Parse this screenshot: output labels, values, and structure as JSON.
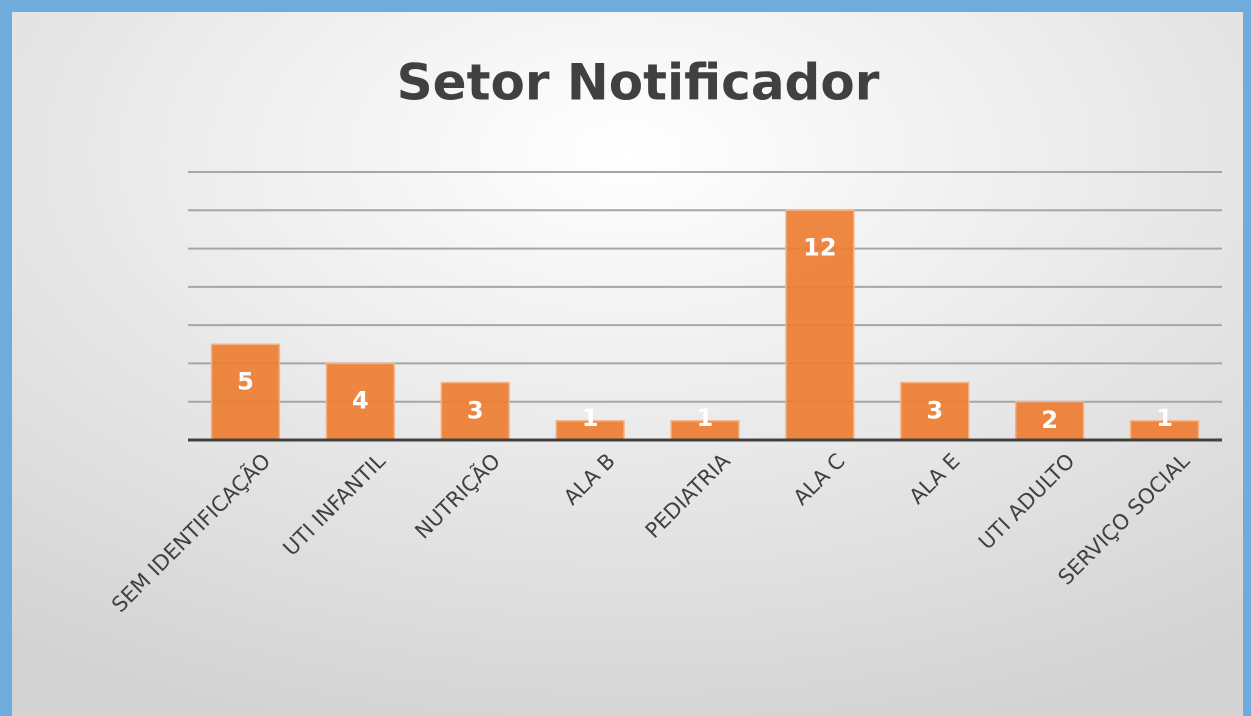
{
  "chart_data": {
    "type": "bar",
    "title": "Setor Notificador",
    "categories": [
      "SEM IDENTIFICAÇÃO",
      "UTI INFANTIL",
      "NUTRIÇÃO",
      "ALA B",
      "PEDIATRIA",
      "ALA C",
      "ALA E",
      "UTI ADULTO",
      "SERVIÇO SOCIAL"
    ],
    "values": [
      5,
      4,
      3,
      1,
      1,
      12,
      3,
      2,
      1
    ],
    "color": "#ed7d31",
    "ylim": [
      0,
      14
    ],
    "yticks": [
      0,
      2,
      4,
      6,
      8,
      10,
      12,
      14
    ],
    "grid": true
  }
}
